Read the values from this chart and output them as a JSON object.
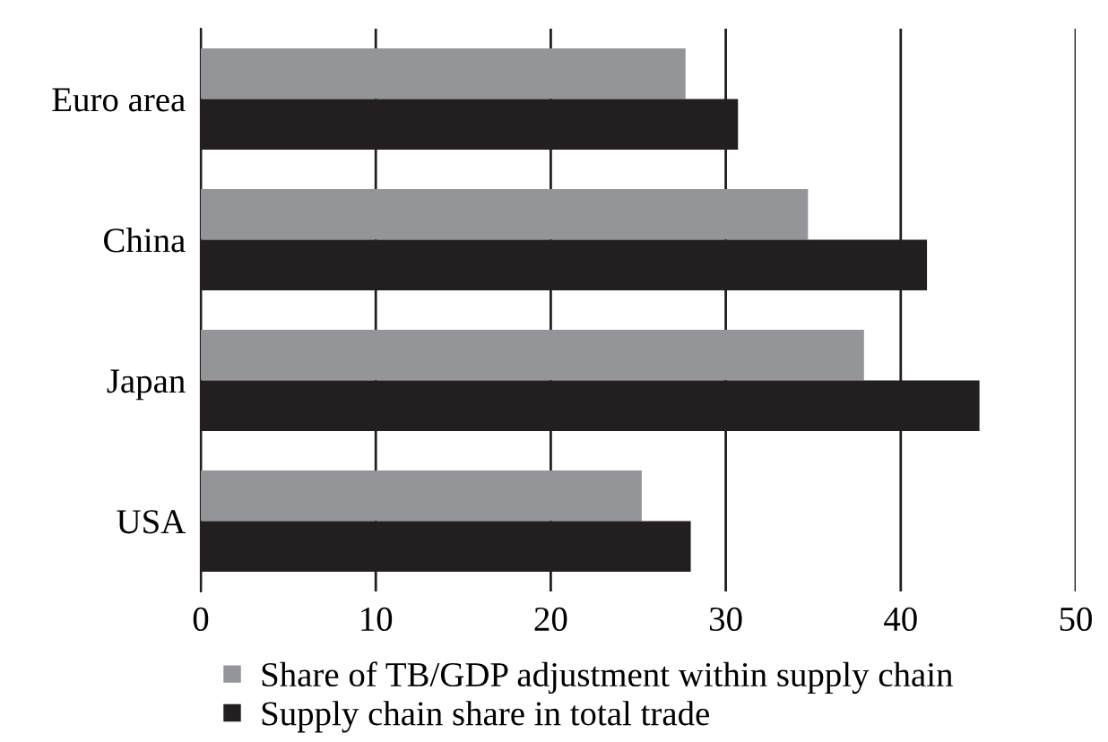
{
  "chart_data": {
    "type": "bar",
    "orientation": "horizontal",
    "categories": [
      "Euro area",
      "China",
      "Japan",
      "USA"
    ],
    "series": [
      {
        "name": "Share of TB/GDP adjustment within supply chain",
        "color": "#939598",
        "values": [
          27.7,
          34.7,
          37.9,
          25.2
        ]
      },
      {
        "name": "Supply chain share in total trade",
        "color": "#231f20",
        "values": [
          30.7,
          41.5,
          44.5,
          28.0
        ]
      }
    ],
    "xlim": [
      0,
      50
    ],
    "xticks": [
      0,
      10,
      20,
      30,
      40,
      50
    ],
    "grid": "x",
    "legend": "bottom"
  }
}
